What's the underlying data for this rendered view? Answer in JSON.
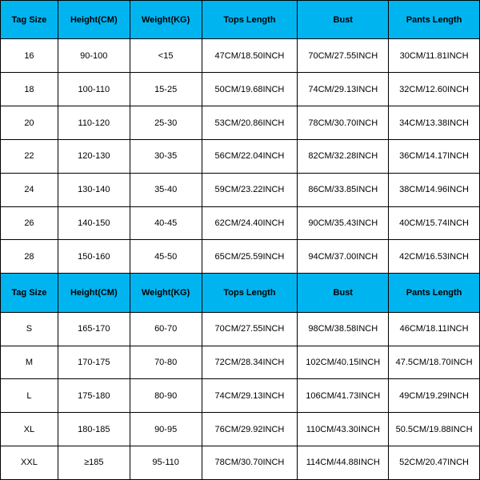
{
  "columns": [
    "Tag Size",
    "Height(CM)",
    "Weight(KG)",
    "Tops Length",
    "Bust",
    "Pants Length"
  ],
  "header_bg": "#00b4f0",
  "header_fg": "#000000",
  "cell_bg": "#ffffff",
  "cell_fg": "#000000",
  "border_color": "#000000",
  "section1_rows": [
    [
      "16",
      "90-100",
      "<15",
      "47CM/18.50INCH",
      "70CM/27.55INCH",
      "30CM/11.81INCH"
    ],
    [
      "18",
      "100-110",
      "15-25",
      "50CM/19.68INCH",
      "74CM/29.13INCH",
      "32CM/12.60INCH"
    ],
    [
      "20",
      "110-120",
      "25-30",
      "53CM/20.86INCH",
      "78CM/30.70INCH",
      "34CM/13.38INCH"
    ],
    [
      "22",
      "120-130",
      "30-35",
      "56CM/22.04INCH",
      "82CM/32.28INCH",
      "36CM/14.17INCH"
    ],
    [
      "24",
      "130-140",
      "35-40",
      "59CM/23.22INCH",
      "86CM/33.85INCH",
      "38CM/14.96INCH"
    ],
    [
      "26",
      "140-150",
      "40-45",
      "62CM/24.40INCH",
      "90CM/35.43INCH",
      "40CM/15.74INCH"
    ],
    [
      "28",
      "150-160",
      "45-50",
      "65CM/25.59INCH",
      "94CM/37.00INCH",
      "42CM/16.53INCH"
    ]
  ],
  "section2_rows": [
    [
      "S",
      "165-170",
      "60-70",
      "70CM/27.55INCH",
      "98CM/38.58INCH",
      "46CM/18.11INCH"
    ],
    [
      "M",
      "170-175",
      "70-80",
      "72CM/28.34INCH",
      "102CM/40.15INCH",
      "47.5CM/18.70INCH"
    ],
    [
      "L",
      "175-180",
      "80-90",
      "74CM/29.13INCH",
      "106CM/41.73INCH",
      "49CM/19.29INCH"
    ],
    [
      "XL",
      "180-185",
      "90-95",
      "76CM/29.92INCH",
      "110CM/43.30INCH",
      "50.5CM/19.88INCH"
    ],
    [
      "XXL",
      "≥185",
      "95-110",
      "78CM/30.70INCH",
      "114CM/44.88INCH",
      "52CM/20.47INCH"
    ]
  ]
}
